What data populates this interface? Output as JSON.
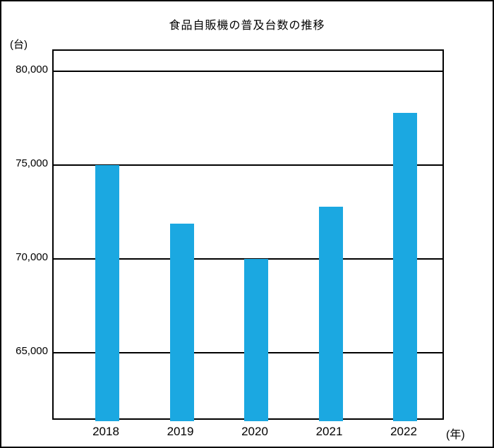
{
  "chart_data": {
    "type": "bar",
    "title": "食品自販機の普及台数の推移",
    "categories": [
      "2018",
      "2019",
      "2020",
      "2021",
      "2022"
    ],
    "values": [
      75000,
      71900,
      70000,
      72800,
      77800
    ],
    "xlabel": "(年)",
    "ylabel": "(台)",
    "yticks": [
      80000,
      75000,
      70000,
      65000
    ],
    "ytick_labels": [
      "80,000",
      "75,000",
      "70,000",
      "65,000"
    ],
    "ylim": [
      61350,
      81100
    ],
    "grid": true,
    "bar_color": "#1BA8E1",
    "axis_color": "#000000",
    "legend_position": "none"
  }
}
